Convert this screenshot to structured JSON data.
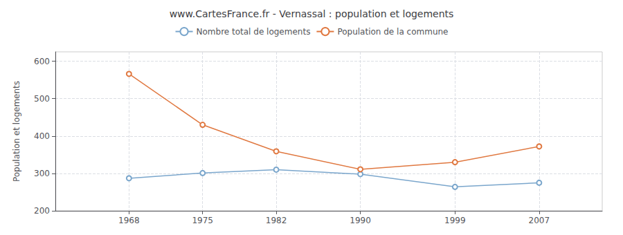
{
  "chart_data": {
    "type": "line",
    "title": "www.CartesFrance.fr - Vernassal : population et logements",
    "ylabel": "Population et logements",
    "x": [
      1968,
      1975,
      1982,
      1990,
      1999,
      2007
    ],
    "series": [
      {
        "name": "Nombre total de logements",
        "color": "#7aa6cc",
        "values": [
          287,
          301,
          310,
          298,
          264,
          275
        ]
      },
      {
        "name": "Population de la commune",
        "color": "#e07840",
        "values": [
          566,
          430,
          359,
          311,
          330,
          372
        ]
      }
    ],
    "xlim": [
      1961,
      2013
    ],
    "xticks": [
      1968,
      1975,
      1982,
      1990,
      1999,
      2007
    ],
    "ylim": [
      200,
      625
    ],
    "yticks": [
      200,
      300,
      400,
      500,
      600
    ],
    "grid": true,
    "legend": "top",
    "marker": "circle"
  }
}
